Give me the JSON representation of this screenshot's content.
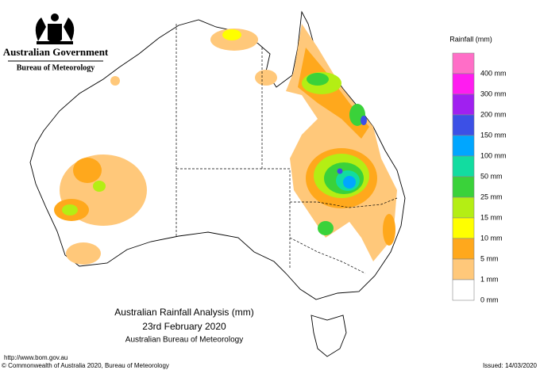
{
  "header": {
    "government": "Australian Government",
    "bureau": "Bureau of Meteorology"
  },
  "legend": {
    "title": "Rainfall (mm)",
    "items": [
      {
        "label": null,
        "color": "#ff6ec7"
      },
      {
        "label": "400 mm",
        "color": "#ff1cf0"
      },
      {
        "label": "300 mm",
        "color": "#a020f0"
      },
      {
        "label": "200 mm",
        "color": "#3c50e6"
      },
      {
        "label": "150 mm",
        "color": "#00a6ff"
      },
      {
        "label": "100 mm",
        "color": "#12dca0"
      },
      {
        "label": "50 mm",
        "color": "#3ad23a"
      },
      {
        "label": "25 mm",
        "color": "#b4ee14"
      },
      {
        "label": "15 mm",
        "color": "#ffff00"
      },
      {
        "label": "10 mm",
        "color": "#ffa81c"
      },
      {
        "label": "5 mm",
        "color": "#ffc87a"
      },
      {
        "label": "1 mm",
        "color": "#ffffff"
      }
    ],
    "bottom_label": "0 mm"
  },
  "map": {
    "title": "Australian Rainfall Analysis (mm)",
    "date": "23rd February 2020",
    "source": "Australian Bureau of Meteorology"
  },
  "footer": {
    "url": "http://www.bom.gov.au",
    "copyright": "© Commonwealth of Australia 2020, Bureau of Meteorology",
    "issued": "Issued: 14/03/2020"
  }
}
